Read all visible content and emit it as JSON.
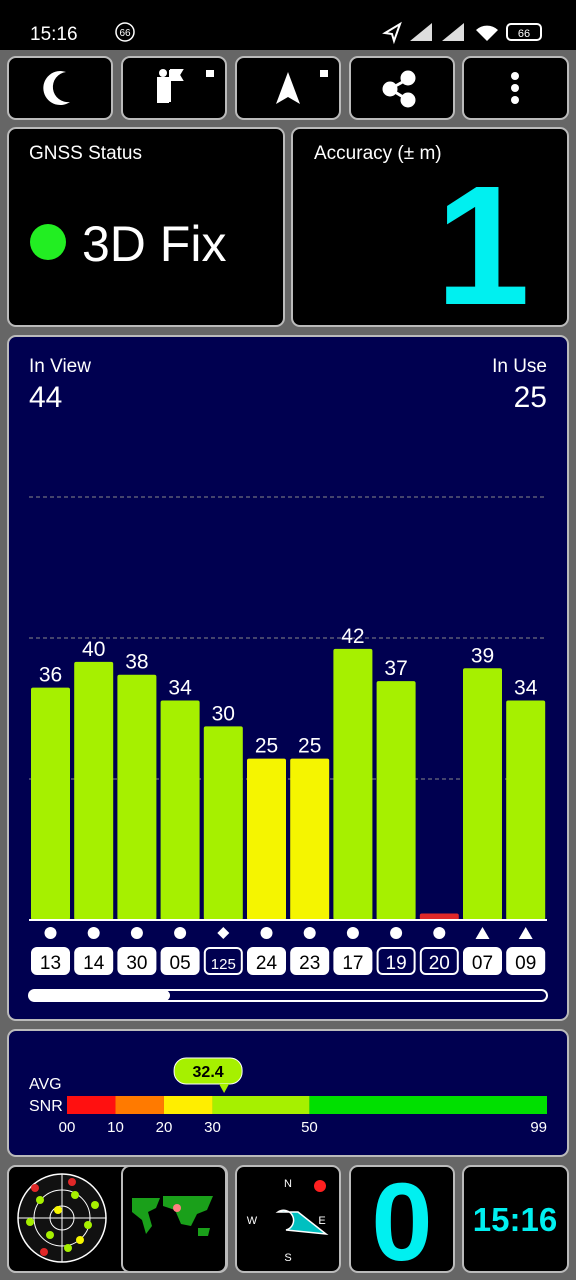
{
  "status_bar": {
    "time": "15:16",
    "notification_count": "66",
    "battery": "66"
  },
  "gnss_status": {
    "label": "GNSS Status",
    "value": "3D Fix"
  },
  "accuracy": {
    "label": "Accuracy (± m)",
    "value": 1
  },
  "satellites": {
    "in_view_label": "In View",
    "in_view": 44,
    "in_use_label": "In Use",
    "in_use": 25
  },
  "chart_data": {
    "type": "bar",
    "categories": [
      "13",
      "14",
      "30",
      "05",
      "125",
      "24",
      "23",
      "17",
      "19",
      "20",
      "07",
      "09"
    ],
    "values": [
      36,
      40,
      38,
      34,
      30,
      25,
      25,
      42,
      37,
      1,
      39,
      34
    ],
    "value_labels": [
      "36",
      "40",
      "38",
      "34",
      "30",
      "25",
      "25",
      "42",
      "37",
      null,
      "39",
      "34"
    ],
    "colors": [
      "#a6f000",
      "#a6f000",
      "#a6f000",
      "#a6f000",
      "#a6f000",
      "#f5f500",
      "#f5f500",
      "#a6f000",
      "#a6f000",
      "#e02828",
      "#a6f000",
      "#a6f000"
    ],
    "markers": [
      "circle",
      "circle",
      "circle",
      "circle",
      "diamond",
      "circle",
      "circle",
      "circle",
      "circle",
      "circle",
      "triangle",
      "triangle"
    ],
    "in_use": [
      true,
      true,
      true,
      true,
      false,
      true,
      true,
      true,
      false,
      false,
      true,
      true
    ],
    "ylim": [
      0,
      66
    ]
  },
  "snr_bar": {
    "label_1": "AVG",
    "label_2": "SNR",
    "value": 32.4,
    "xlim": [
      0,
      99
    ],
    "ticks": [
      {
        "value": 0,
        "label": "00"
      },
      10,
      20,
      30,
      50,
      99
    ],
    "segment_colors": [
      "#ff1010",
      "#ff7a00",
      "#ffee00",
      "#a6f000",
      "#00e000"
    ]
  },
  "compass": {
    "n": "N",
    "e": "E",
    "s": "S",
    "w": "W"
  },
  "speed": 0,
  "clock": "15:16"
}
